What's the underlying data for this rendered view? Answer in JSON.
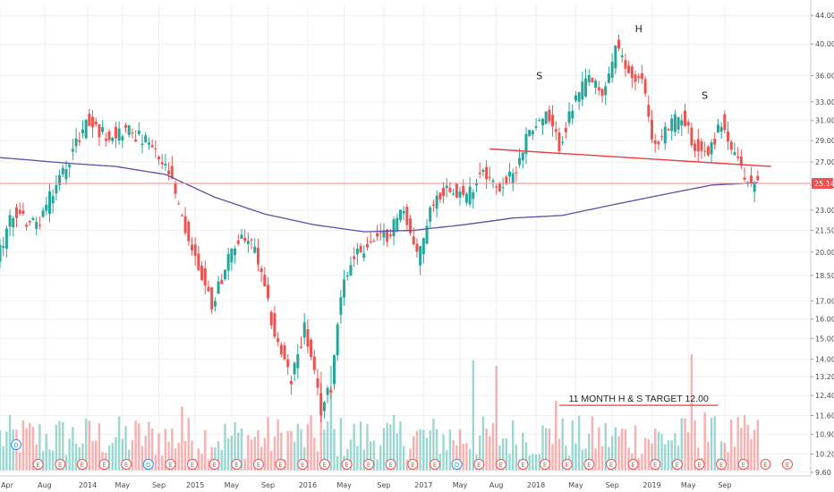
{
  "chart_data": {
    "type": "candlestick",
    "y_scale": "log",
    "ylim": [
      9.6,
      45.5
    ],
    "y_ticks": [
      "44.00",
      "40.00",
      "36.00",
      "33.00",
      "31.00",
      "29.00",
      "27.00",
      "25.00",
      "23.00",
      "21.50",
      "20.00",
      "18.50",
      "17.00",
      "16.00",
      "15.00",
      "14.00",
      "13.20",
      "12.40",
      "11.60",
      "10.90",
      "10.20",
      "9.60"
    ],
    "x_ticks": [
      "Apr",
      "Aug",
      "2014",
      "May",
      "Sep",
      "2015",
      "May",
      "Sep",
      "2016",
      "May",
      "Sep",
      "2017",
      "May",
      "Aug",
      "2018",
      "May",
      "Sep",
      "2019",
      "May",
      "Sep"
    ],
    "last_price": "25.14",
    "price_path": [
      {
        "t": 0,
        "v": 19.6
      },
      {
        "t": 5,
        "v": 22.8
      },
      {
        "t": 12,
        "v": 21.8
      },
      {
        "t": 20,
        "v": 26.2
      },
      {
        "t": 27,
        "v": 30.8
      },
      {
        "t": 33,
        "v": 29.6
      },
      {
        "t": 40,
        "v": 30.1
      },
      {
        "t": 46,
        "v": 28.6
      },
      {
        "t": 52,
        "v": 26.0
      },
      {
        "t": 56,
        "v": 22.2
      },
      {
        "t": 60,
        "v": 19.6
      },
      {
        "t": 65,
        "v": 16.8
      },
      {
        "t": 69,
        "v": 19.0
      },
      {
        "t": 74,
        "v": 21.2
      },
      {
        "t": 78,
        "v": 20.2
      },
      {
        "t": 84,
        "v": 15.2
      },
      {
        "t": 89,
        "v": 13.0
      },
      {
        "t": 93,
        "v": 15.6
      },
      {
        "t": 98,
        "v": 11.8
      },
      {
        "t": 101,
        "v": 12.8
      },
      {
        "t": 104,
        "v": 17.6
      },
      {
        "t": 108,
        "v": 19.8
      },
      {
        "t": 113,
        "v": 20.6
      },
      {
        "t": 118,
        "v": 21.2
      },
      {
        "t": 123,
        "v": 23.2
      },
      {
        "t": 127,
        "v": 19.6
      },
      {
        "t": 132,
        "v": 23.8
      },
      {
        "t": 137,
        "v": 25.0
      },
      {
        "t": 142,
        "v": 24.0
      },
      {
        "t": 147,
        "v": 26.6
      },
      {
        "t": 151,
        "v": 24.6
      },
      {
        "t": 156,
        "v": 25.8
      },
      {
        "t": 161,
        "v": 30.2
      },
      {
        "t": 166,
        "v": 31.4
      },
      {
        "t": 170,
        "v": 28.6
      },
      {
        "t": 175,
        "v": 33.2
      },
      {
        "t": 179,
        "v": 35.8
      },
      {
        "t": 183,
        "v": 33.4
      },
      {
        "t": 187,
        "v": 39.6
      },
      {
        "t": 191,
        "v": 36.2
      },
      {
        "t": 195,
        "v": 35.4
      },
      {
        "t": 199,
        "v": 28.2
      },
      {
        "t": 203,
        "v": 30.4
      },
      {
        "t": 207,
        "v": 31.6
      },
      {
        "t": 211,
        "v": 28.4
      },
      {
        "t": 215,
        "v": 27.8
      },
      {
        "t": 219,
        "v": 30.8
      },
      {
        "t": 223,
        "v": 27.4
      },
      {
        "t": 227,
        "v": 25.2
      },
      {
        "t": 229,
        "v": 25.1
      }
    ],
    "ma_path": [
      {
        "t": 0,
        "v": 27.4
      },
      {
        "t": 20,
        "v": 26.9
      },
      {
        "t": 35,
        "v": 26.6
      },
      {
        "t": 50,
        "v": 25.9
      },
      {
        "t": 65,
        "v": 24.0
      },
      {
        "t": 80,
        "v": 22.7
      },
      {
        "t": 95,
        "v": 21.9
      },
      {
        "t": 110,
        "v": 21.4
      },
      {
        "t": 125,
        "v": 21.5
      },
      {
        "t": 140,
        "v": 21.9
      },
      {
        "t": 155,
        "v": 22.4
      },
      {
        "t": 170,
        "v": 22.6
      },
      {
        "t": 185,
        "v": 23.4
      },
      {
        "t": 200,
        "v": 24.2
      },
      {
        "t": 215,
        "v": 25.0
      },
      {
        "t": 229,
        "v": 25.2
      }
    ],
    "neckline": [
      {
        "t": 148,
        "v": 28.2
      },
      {
        "t": 233,
        "v": 26.6
      }
    ],
    "volume_spikes": [
      {
        "t": 55,
        "v": 0.55
      },
      {
        "t": 97,
        "v": 0.85
      },
      {
        "t": 100,
        "v": 0.9
      },
      {
        "t": 143,
        "v": 0.95
      },
      {
        "t": 150,
        "v": 0.9
      },
      {
        "t": 168,
        "v": 0.6
      },
      {
        "t": 209,
        "v": 1.0
      },
      {
        "t": 213,
        "v": 0.5
      }
    ],
    "annotations": [
      {
        "text": "S",
        "t": 163,
        "v": 35.6
      },
      {
        "text": "H",
        "t": 193,
        "v": 41.6
      },
      {
        "text": "S",
        "t": 213,
        "v": 33.3
      }
    ],
    "target": {
      "text": "11 MONTH H & S TARGET 12.00",
      "t_start": 169,
      "t_end": 217,
      "v": 12.0
    },
    "event_markers": [
      "D",
      "E",
      "E",
      "E",
      "E",
      "E",
      "D",
      "E",
      "E",
      "E",
      "E",
      "E",
      "E",
      "E",
      "E",
      "E",
      "E",
      "E",
      "E",
      "E",
      "D",
      "E",
      "E",
      "E",
      "E",
      "E",
      "E",
      "E",
      "E",
      "E",
      "E",
      "E",
      "E",
      "E",
      "E",
      "E"
    ],
    "colors": {
      "up": "#26a69a",
      "down": "#ef5350",
      "ma": "#5b4fa8",
      "neckline": "#ef3b3b",
      "price_line": "#f28a8a",
      "price_label": "#ef5350",
      "div_marker": "#2196f3",
      "earn_marker": "#ef5350"
    }
  }
}
